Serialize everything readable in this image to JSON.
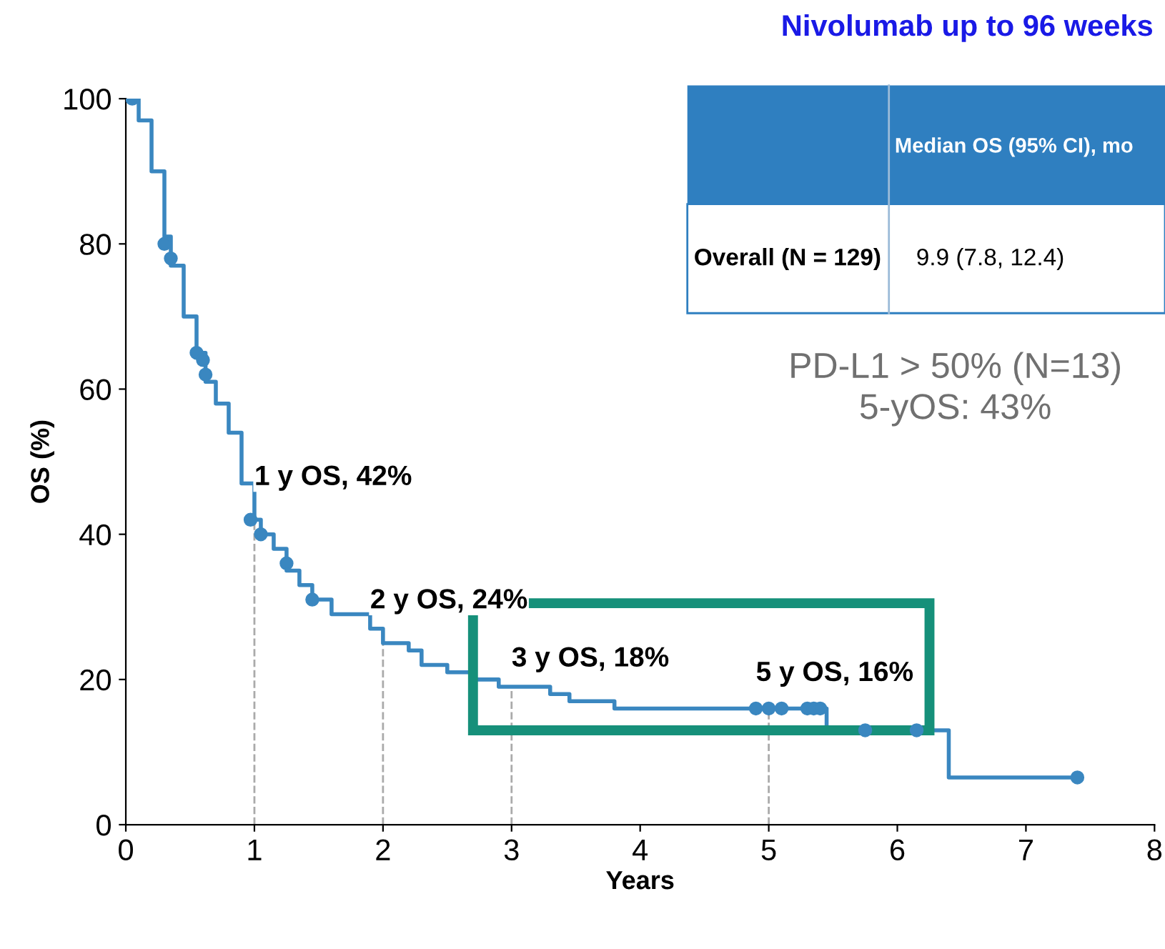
{
  "chart_data": {
    "type": "step",
    "title": "Nivolumab up to 96 weeks",
    "xlabel": "Years",
    "ylabel": "OS (%)",
    "xlim": [
      0,
      8
    ],
    "ylim": [
      0,
      100
    ],
    "xticks": [
      0,
      1,
      2,
      3,
      4,
      5,
      6,
      7,
      8
    ],
    "yticks": [
      0,
      20,
      40,
      60,
      80,
      100
    ],
    "grid": false,
    "series": [
      {
        "color": "#3a87c0",
        "line_style": "solid",
        "marker": "none",
        "x": [
          0,
          0.05,
          0.1,
          0.2,
          0.3,
          0.35,
          0.45,
          0.55,
          0.62,
          0.7,
          0.8,
          0.9,
          1.0,
          1.05,
          1.15,
          1.25,
          1.35,
          1.45,
          1.6,
          1.9,
          2.0,
          2.2,
          2.3,
          2.5,
          2.7,
          2.9,
          3.3,
          3.45,
          3.8,
          4.2,
          5.45,
          6.4,
          7.4
        ],
        "values": [
          100,
          100,
          97,
          90,
          81,
          77,
          70,
          65,
          61,
          58,
          54,
          47,
          42,
          40,
          38,
          35,
          33,
          31,
          29,
          27,
          25,
          24,
          22,
          21,
          20,
          19,
          18,
          17,
          16,
          16,
          13,
          6.5,
          6.5
        ]
      },
      {
        "type": "scatter",
        "color": "#3a87c0",
        "marker": "circle",
        "x": [
          0.05,
          0.3,
          0.35,
          0.55,
          0.6,
          0.62,
          0.97,
          1.05,
          1.25,
          1.45,
          4.9,
          5.0,
          5.1,
          5.3,
          5.35,
          5.4,
          5.75,
          6.15,
          7.4
        ],
        "values": [
          100,
          80,
          78,
          65,
          64,
          62,
          42,
          40,
          36,
          31,
          16,
          16,
          16,
          16,
          16,
          16,
          13,
          13,
          6.5
        ]
      }
    ],
    "ref_lines": [
      {
        "axis": "x",
        "value": 1,
        "label": null,
        "color": "#aaaaaa",
        "line_style": "dashed"
      },
      {
        "axis": "x",
        "value": 2,
        "label": null,
        "color": "#aaaaaa",
        "line_style": "dashed"
      },
      {
        "axis": "x",
        "value": 3,
        "label": null,
        "color": "#aaaaaa",
        "line_style": "dashed"
      },
      {
        "axis": "x",
        "value": 5,
        "label": null,
        "color": "#aaaaaa",
        "line_style": "dashed"
      }
    ],
    "annotations": [
      {
        "text": "1 y OS, 42%",
        "x": 1,
        "y": 42
      },
      {
        "text": "2 y OS, 24%",
        "x": 2,
        "y": 24
      },
      {
        "text": "3 y OS, 18%",
        "x": 3,
        "y": 18
      },
      {
        "text": "5 y OS, 16%",
        "x": 5,
        "y": 16
      },
      "Median OS (95% CI), mo",
      "Overall (N = 129)",
      "9.9 (7.8, 12.4)",
      "PD-L1 > 50% (N=13)\n5-yOS: 43%"
    ]
  }
}
